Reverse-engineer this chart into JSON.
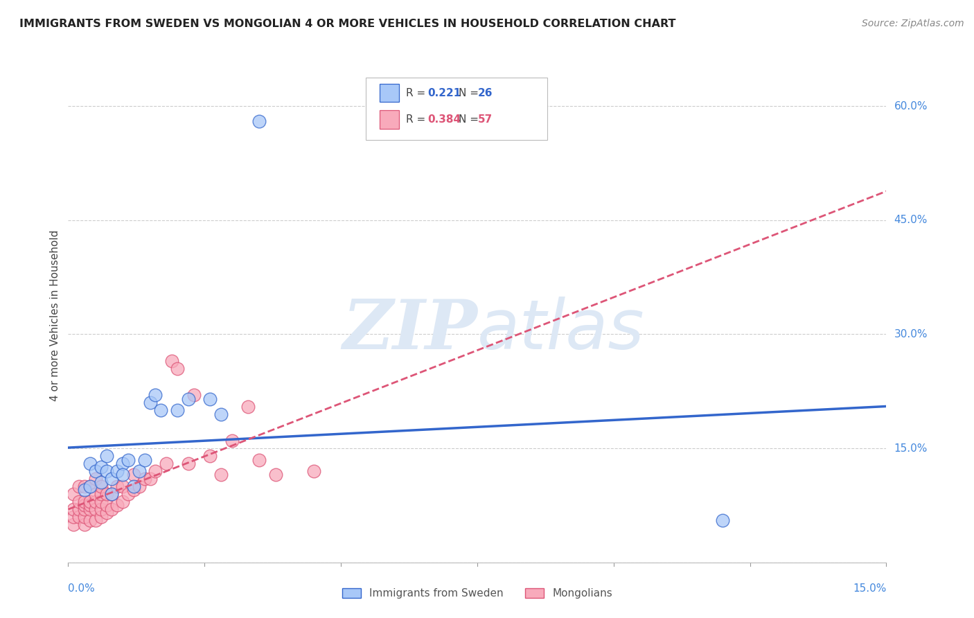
{
  "title": "IMMIGRANTS FROM SWEDEN VS MONGOLIAN 4 OR MORE VEHICLES IN HOUSEHOLD CORRELATION CHART",
  "source": "Source: ZipAtlas.com",
  "ylabel": "4 or more Vehicles in Household",
  "xlim": [
    0.0,
    0.15
  ],
  "ylim": [
    0.0,
    0.65
  ],
  "ytick_positions": [
    0.0,
    0.15,
    0.3,
    0.45,
    0.6
  ],
  "ytick_labels": [
    "",
    "15.0%",
    "30.0%",
    "45.0%",
    "60.0%"
  ],
  "xtick_label_left": "0.0%",
  "xtick_label_right": "15.0%",
  "color_sweden_fill": "#a8c8f8",
  "color_sweden_edge": "#3366cc",
  "color_mongolian_fill": "#f8aabb",
  "color_mongolian_edge": "#dd5577",
  "color_sweden_line": "#3366cc",
  "color_mongolian_line": "#dd5577",
  "watermark_color": "#dde8f5",
  "sweden_x": [
    0.003,
    0.004,
    0.004,
    0.005,
    0.006,
    0.006,
    0.007,
    0.007,
    0.008,
    0.008,
    0.009,
    0.01,
    0.01,
    0.011,
    0.012,
    0.013,
    0.014,
    0.015,
    0.016,
    0.017,
    0.02,
    0.022,
    0.026,
    0.028,
    0.035,
    0.12
  ],
  "sweden_y": [
    0.095,
    0.1,
    0.13,
    0.12,
    0.105,
    0.125,
    0.12,
    0.14,
    0.09,
    0.11,
    0.12,
    0.13,
    0.115,
    0.135,
    0.1,
    0.12,
    0.135,
    0.21,
    0.22,
    0.2,
    0.2,
    0.215,
    0.215,
    0.195,
    0.58,
    0.055
  ],
  "mongolian_x": [
    0.001,
    0.001,
    0.001,
    0.001,
    0.002,
    0.002,
    0.002,
    0.002,
    0.003,
    0.003,
    0.003,
    0.003,
    0.003,
    0.003,
    0.004,
    0.004,
    0.004,
    0.004,
    0.004,
    0.005,
    0.005,
    0.005,
    0.005,
    0.005,
    0.006,
    0.006,
    0.006,
    0.006,
    0.006,
    0.007,
    0.007,
    0.007,
    0.008,
    0.008,
    0.009,
    0.009,
    0.01,
    0.01,
    0.011,
    0.012,
    0.012,
    0.013,
    0.014,
    0.015,
    0.016,
    0.018,
    0.019,
    0.02,
    0.022,
    0.023,
    0.026,
    0.028,
    0.03,
    0.033,
    0.035,
    0.038,
    0.045
  ],
  "mongolian_y": [
    0.05,
    0.06,
    0.07,
    0.09,
    0.06,
    0.07,
    0.08,
    0.1,
    0.05,
    0.06,
    0.07,
    0.075,
    0.08,
    0.1,
    0.055,
    0.07,
    0.075,
    0.08,
    0.1,
    0.055,
    0.07,
    0.08,
    0.09,
    0.11,
    0.06,
    0.07,
    0.08,
    0.09,
    0.1,
    0.065,
    0.075,
    0.09,
    0.07,
    0.09,
    0.075,
    0.1,
    0.08,
    0.1,
    0.09,
    0.095,
    0.115,
    0.1,
    0.11,
    0.11,
    0.12,
    0.13,
    0.265,
    0.255,
    0.13,
    0.22,
    0.14,
    0.115,
    0.16,
    0.205,
    0.135,
    0.115,
    0.12
  ],
  "legend_items": [
    {
      "label_r": "R = ",
      "r_val": "0.221",
      "label_n": "N = ",
      "n_val": "26",
      "fill": "#a8c8f8",
      "edge": "#3366cc",
      "r_color": "#3366cc",
      "n_color": "#3366cc"
    },
    {
      "label_r": "R = ",
      "r_val": "0.384",
      "label_n": "N = ",
      "n_val": "57",
      "fill": "#f8aabb",
      "edge": "#dd5577",
      "r_color": "#dd5577",
      "n_color": "#dd5577"
    }
  ]
}
